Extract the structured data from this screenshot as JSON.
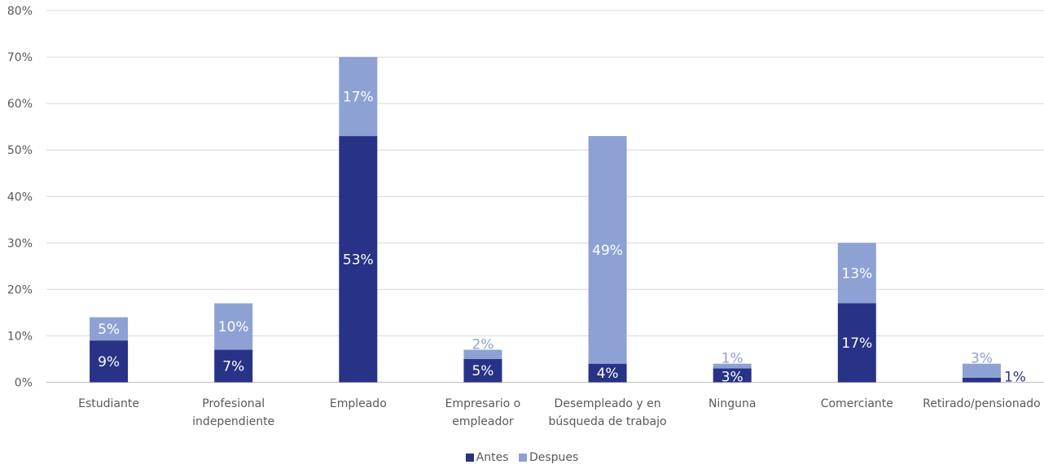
{
  "chart_data": {
    "type": "bar",
    "stacked": true,
    "categories": [
      [
        "Estudiante"
      ],
      [
        "Profesional",
        "independiente"
      ],
      [
        "Empleado"
      ],
      [
        "Empresario o",
        "empleador"
      ],
      [
        "Desempleado y en",
        "búsqueda de trabajo"
      ],
      [
        "Ninguna"
      ],
      [
        "Comerciante"
      ],
      [
        "Retirado/pensionado"
      ]
    ],
    "series": [
      {
        "name": "Antes",
        "color": "#283287",
        "values": [
          9,
          7,
          53,
          5,
          4,
          3,
          17,
          1
        ],
        "labels": [
          "9%",
          "7%",
          "53%",
          "5%",
          "4%",
          "3%",
          "17%",
          "1%"
        ]
      },
      {
        "name": "Despues",
        "color": "#8da1d4",
        "values": [
          5,
          10,
          17,
          2,
          49,
          1,
          13,
          3
        ],
        "labels": [
          "5%",
          "10%",
          "17%",
          "2%",
          "49%",
          "1%",
          "13%",
          "3%"
        ]
      }
    ],
    "ylim": [
      0,
      80
    ],
    "yticks": [
      "0%",
      "10%",
      "20%",
      "30%",
      "40%",
      "50%",
      "60%",
      "70%",
      "80%"
    ],
    "grid": true,
    "legend_position": "bottom"
  }
}
